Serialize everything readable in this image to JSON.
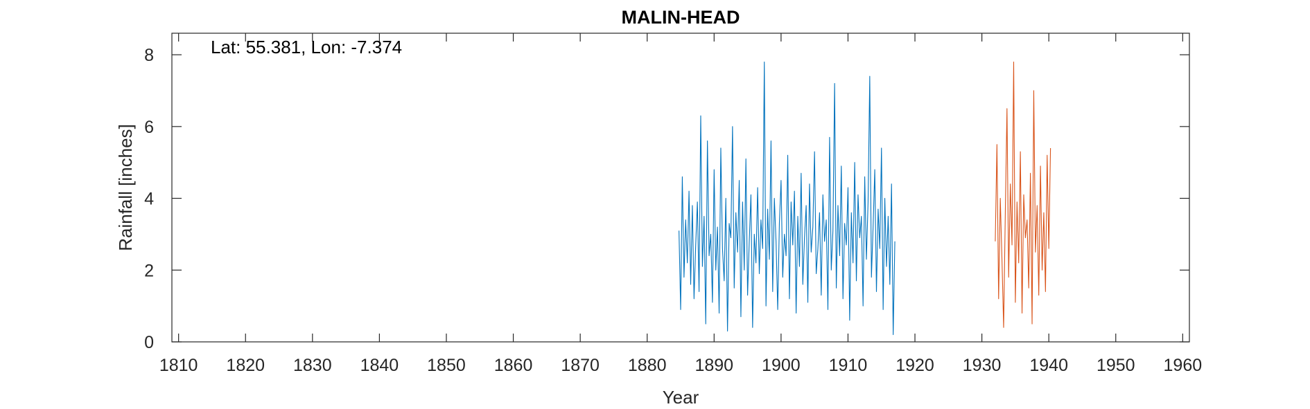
{
  "chart_data": {
    "type": "line",
    "title": "MALIN-HEAD",
    "annotation": "Lat: 55.381, Lon: -7.374",
    "xlabel": "Year",
    "ylabel": "Rainfall [inches]",
    "xlim": [
      1809,
      1961
    ],
    "ylim": [
      0,
      8.6
    ],
    "xticks": [
      1810,
      1820,
      1830,
      1840,
      1850,
      1860,
      1870,
      1880,
      1890,
      1900,
      1910,
      1920,
      1930,
      1940,
      1950,
      1960
    ],
    "yticks": [
      0,
      2,
      4,
      6,
      8
    ],
    "grid": false,
    "box": true,
    "colors": {
      "series1": "#0072BD",
      "series2": "#D95319",
      "axis": "#262626"
    },
    "series": [
      {
        "start_year": 1884.75,
        "step_years": 0.25,
        "values": [
          3.1,
          0.9,
          4.6,
          1.8,
          3.4,
          2.2,
          4.2,
          1.6,
          3.8,
          1.2,
          2.7,
          3.9,
          1.4,
          6.3,
          2.1,
          3.5,
          0.5,
          5.6,
          2.4,
          3.0,
          1.1,
          4.8,
          2.0,
          3.2,
          0.8,
          5.4,
          2.6,
          1.7,
          4.0,
          0.3,
          3.3,
          2.9,
          6.0,
          1.5,
          3.6,
          2.5,
          4.5,
          0.7,
          3.9,
          2.0,
          5.1,
          1.3,
          2.8,
          4.1,
          0.4,
          3.0,
          2.2,
          4.3,
          1.9,
          3.4,
          2.6,
          7.8,
          1.0,
          3.7,
          2.3,
          5.6,
          1.4,
          4.0,
          2.8,
          0.9,
          3.3,
          4.5,
          1.8,
          3.0,
          2.4,
          5.2,
          1.2,
          3.9,
          2.7,
          4.2,
          0.8,
          3.5,
          2.1,
          4.7,
          1.6,
          2.9,
          3.8,
          1.1,
          4.4,
          2.5,
          3.2,
          5.3,
          1.9,
          2.6,
          3.6,
          1.3,
          4.1,
          2.8,
          3.4,
          0.9,
          5.7,
          2.0,
          3.1,
          7.2,
          1.5,
          3.8,
          2.4,
          4.9,
          1.2,
          3.3,
          2.7,
          4.3,
          0.6,
          3.6,
          2.2,
          5.0,
          1.7,
          4.1,
          2.9,
          3.5,
          1.0,
          4.6,
          2.3,
          3.9,
          7.4,
          1.8,
          3.2,
          4.8,
          1.4,
          3.7,
          2.6,
          5.4,
          0.9,
          4.0,
          2.1,
          3.5,
          1.6,
          4.4,
          0.2,
          2.8
        ]
      },
      {
        "start_year": 1932.0,
        "step_years": 0.25,
        "values": [
          2.8,
          5.5,
          1.2,
          4.0,
          2.3,
          0.4,
          3.6,
          6.5,
          1.8,
          4.4,
          2.7,
          7.8,
          1.1,
          3.9,
          2.2,
          5.3,
          0.8,
          4.1,
          2.9,
          3.4,
          1.5,
          4.7,
          0.5,
          7.0,
          2.5,
          3.8,
          1.3,
          4.9,
          2.0,
          3.6,
          1.4,
          5.2,
          2.6,
          5.4
        ]
      }
    ]
  }
}
